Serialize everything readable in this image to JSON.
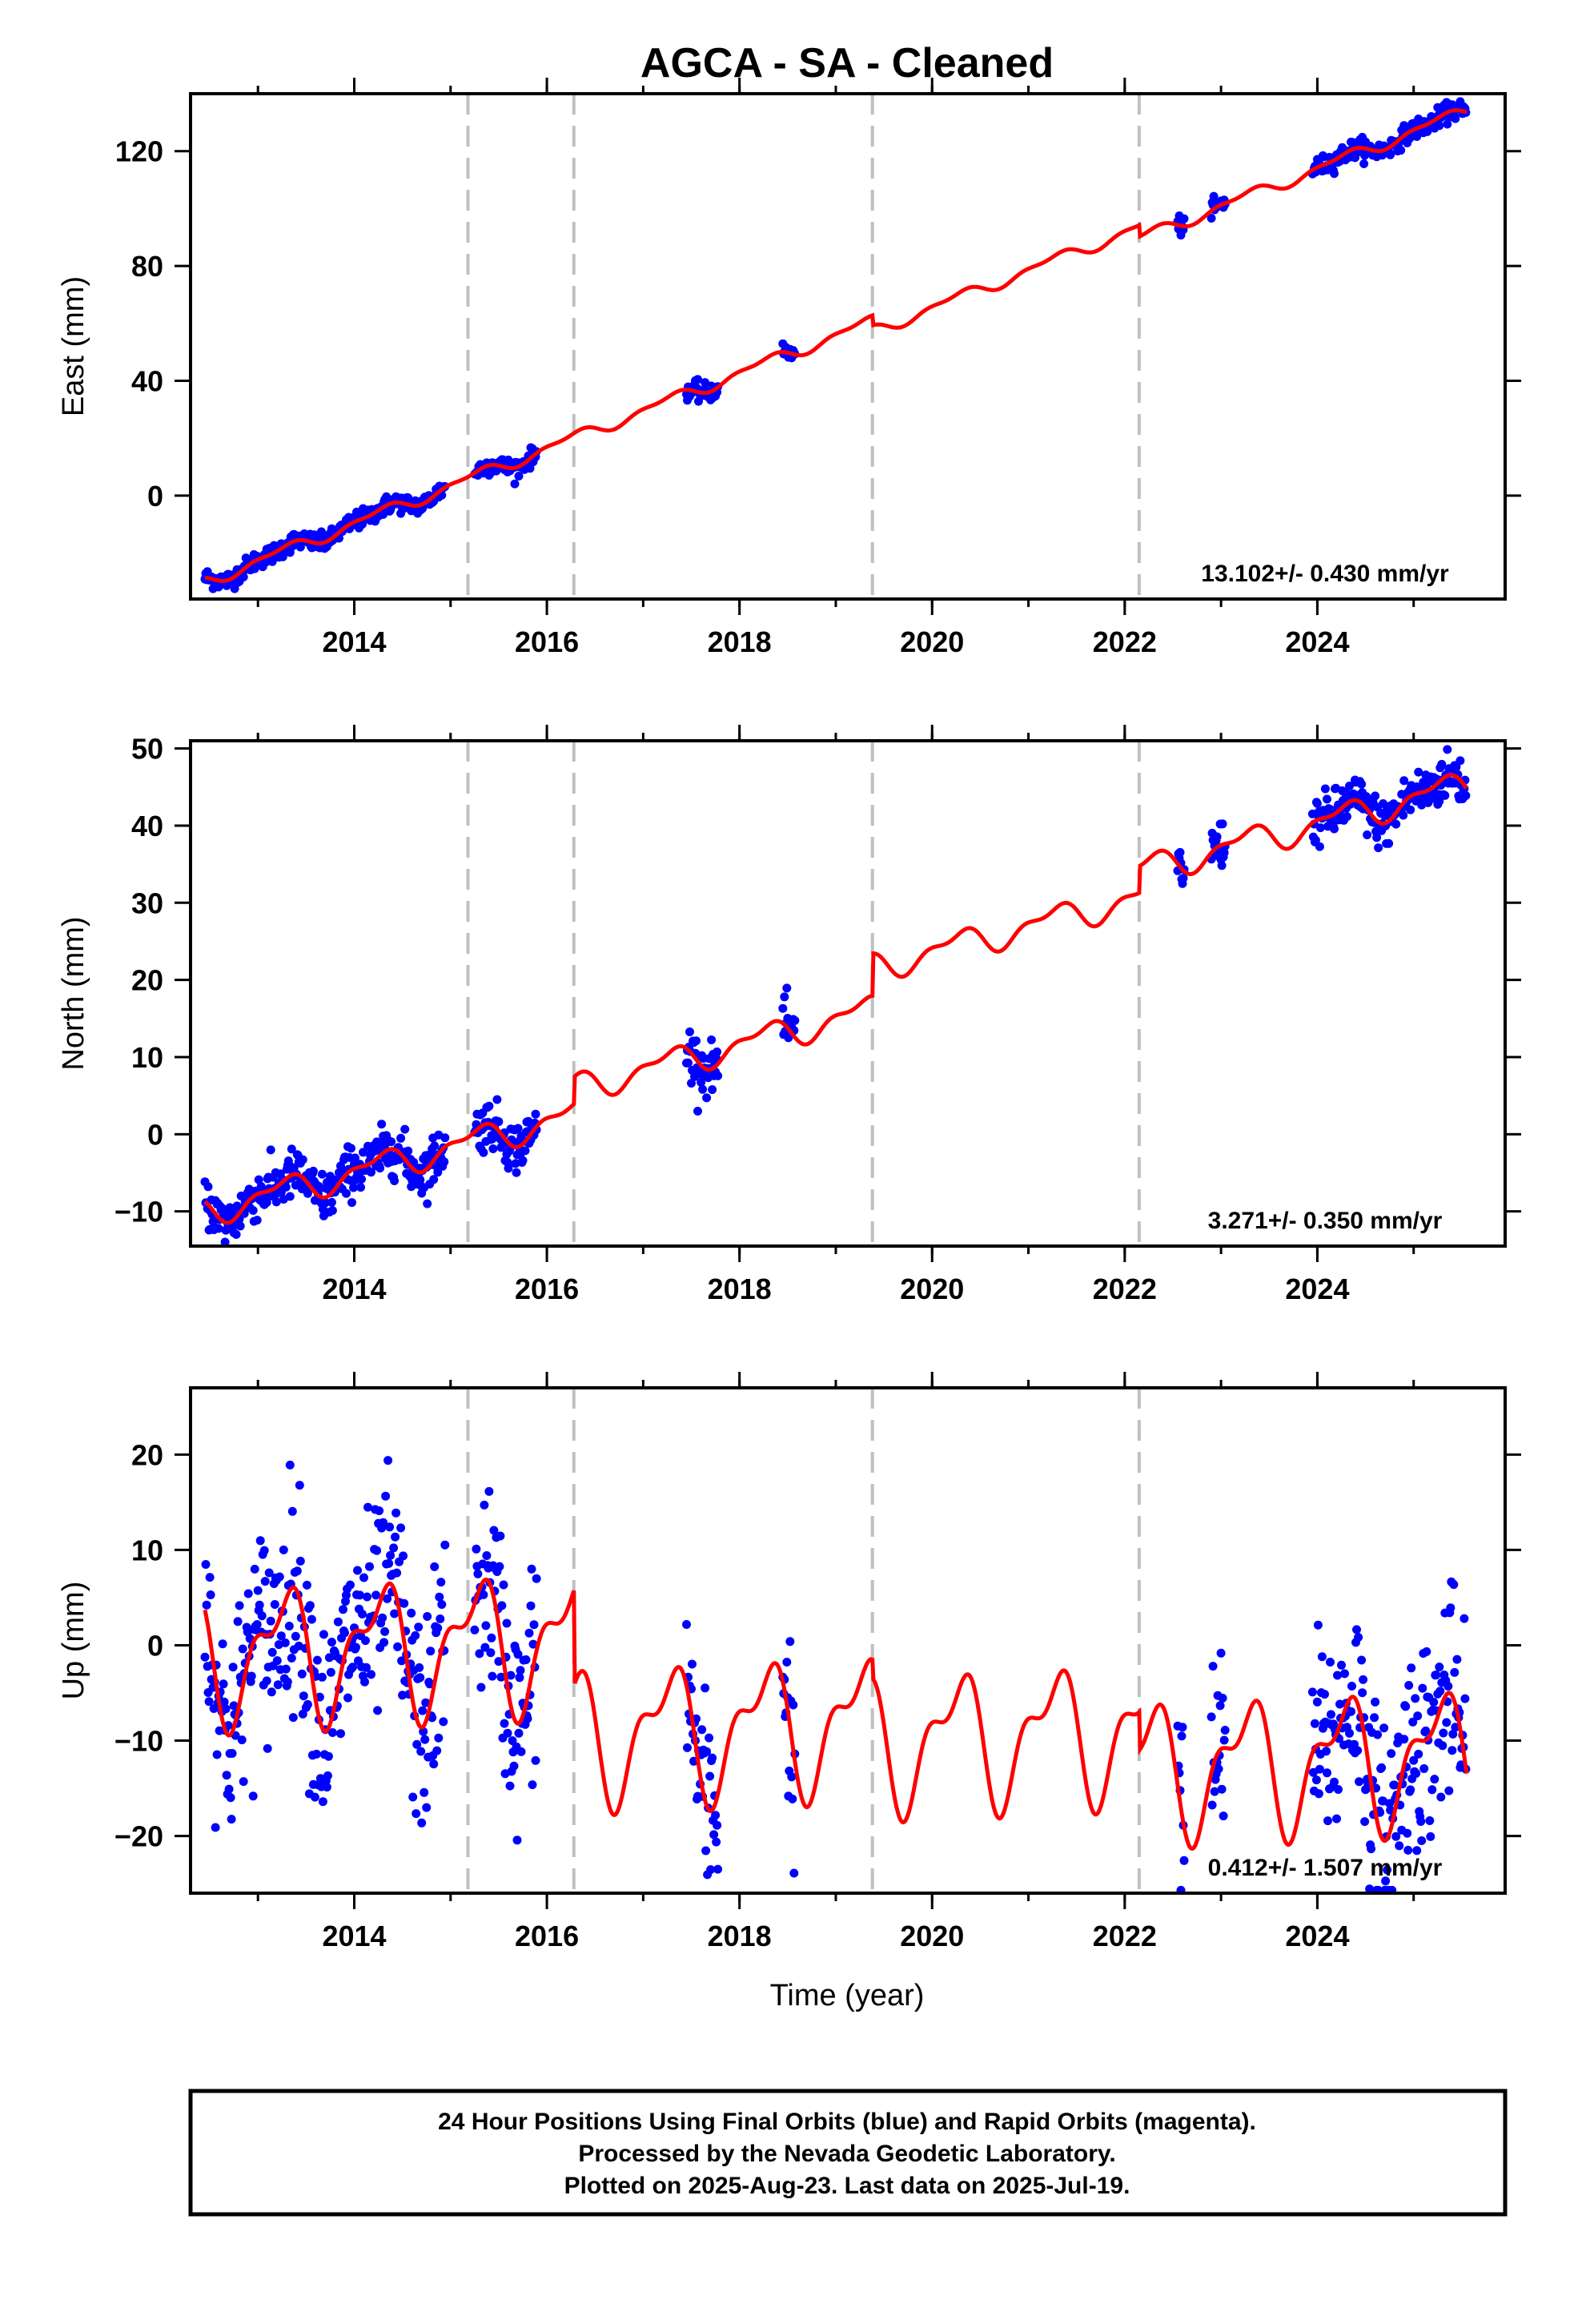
{
  "title": "AGCA  - SA - Cleaned",
  "colors": {
    "data_points": "#0000ff",
    "model_line": "#ff0000",
    "offset_lines": "#c0c0c0",
    "frame": "#000000"
  },
  "offset_years": [
    2015.18,
    2016.28,
    2019.38,
    2022.15
  ],
  "chart_data": [
    {
      "type": "scatter",
      "title": "",
      "ylabel": "East (mm)",
      "xlabel": "",
      "xlim": [
        2012.3,
        2025.95
      ],
      "ylim": [
        -36,
        140
      ],
      "xticks": [
        "2014",
        "2016",
        "2018",
        "2020",
        "2022",
        "2024"
      ],
      "yticks": [
        "0",
        "40",
        "80",
        "120"
      ],
      "rate": "13.102+/- 0.430 mm/yr",
      "rate_value": 13.102,
      "intercept_2012": -30,
      "seasonal_amp": 1.8,
      "jumps": [
        [
          2019.38,
          -3.5
        ],
        [
          2022.15,
          -4
        ]
      ],
      "noise": 1.6,
      "data_segments": [
        [
          2012.45,
          2014.95
        ],
        [
          2015.25,
          2015.9
        ],
        [
          2017.45,
          2017.78
        ],
        [
          2018.45,
          2018.58
        ],
        [
          2022.55,
          2022.62
        ],
        [
          2022.9,
          2023.05
        ],
        [
          2023.95,
          2025.55
        ]
      ],
      "series": [
        {
          "values": []
        }
      ]
    },
    {
      "type": "scatter",
      "title": "",
      "ylabel": "North (mm)",
      "xlabel": "",
      "xlim": [
        2012.3,
        2025.95
      ],
      "ylim": [
        -14.5,
        51
      ],
      "xticks": [
        "2014",
        "2016",
        "2018",
        "2020",
        "2022",
        "2024"
      ],
      "yticks": [
        "−10",
        "0",
        "10",
        "20",
        "30",
        "40",
        "50"
      ],
      "rate": "3.271+/- 0.350 mm/yr",
      "rate_value": 3.271,
      "intercept_2012": -10,
      "seasonal_amp": 1.6,
      "jumps": [
        [
          2016.28,
          3.5
        ],
        [
          2019.38,
          5.5
        ],
        [
          2022.15,
          3.5
        ]
      ],
      "noise": 1.6,
      "data_segments": [
        [
          2012.45,
          2014.95
        ],
        [
          2015.25,
          2015.9
        ],
        [
          2017.45,
          2017.78
        ],
        [
          2018.45,
          2018.58
        ],
        [
          2022.55,
          2022.62
        ],
        [
          2022.9,
          2023.05
        ],
        [
          2023.95,
          2025.55
        ]
      ],
      "series": [
        {
          "values": []
        }
      ]
    },
    {
      "type": "scatter",
      "title": "",
      "ylabel": "Up (mm)",
      "xlabel": "Time (year)",
      "xlim": [
        2012.3,
        2025.95
      ],
      "ylim": [
        -26,
        27
      ],
      "xticks": [
        "2014",
        "2016",
        "2018",
        "2020",
        "2022",
        "2024"
      ],
      "yticks": [
        "−20",
        "−10",
        "0",
        "10",
        "20"
      ],
      "rate": "0.412+/- 1.507 mm/yr",
      "rate_value": 0.412,
      "intercept_2012": -1,
      "seasonal_amp": 6,
      "jumps": [
        [
          2016.28,
          -10
        ],
        [
          2019.38,
          -2
        ],
        [
          2022.15,
          -4
        ]
      ],
      "noise": 5.5,
      "data_segments": [
        [
          2012.45,
          2014.95
        ],
        [
          2015.25,
          2015.9
        ],
        [
          2017.45,
          2017.78
        ],
        [
          2018.45,
          2018.58
        ],
        [
          2022.55,
          2022.62
        ],
        [
          2022.9,
          2023.05
        ],
        [
          2023.95,
          2025.55
        ]
      ],
      "series": [
        {
          "values": []
        }
      ]
    }
  ],
  "footer": {
    "line1": "24 Hour Positions Using Final Orbits (blue) and Rapid Orbits (magenta).",
    "line2": "Processed by the Nevada Geodetic Laboratory.",
    "line3": "Plotted on 2025-Aug-23. Last data on 2025-Jul-19."
  }
}
